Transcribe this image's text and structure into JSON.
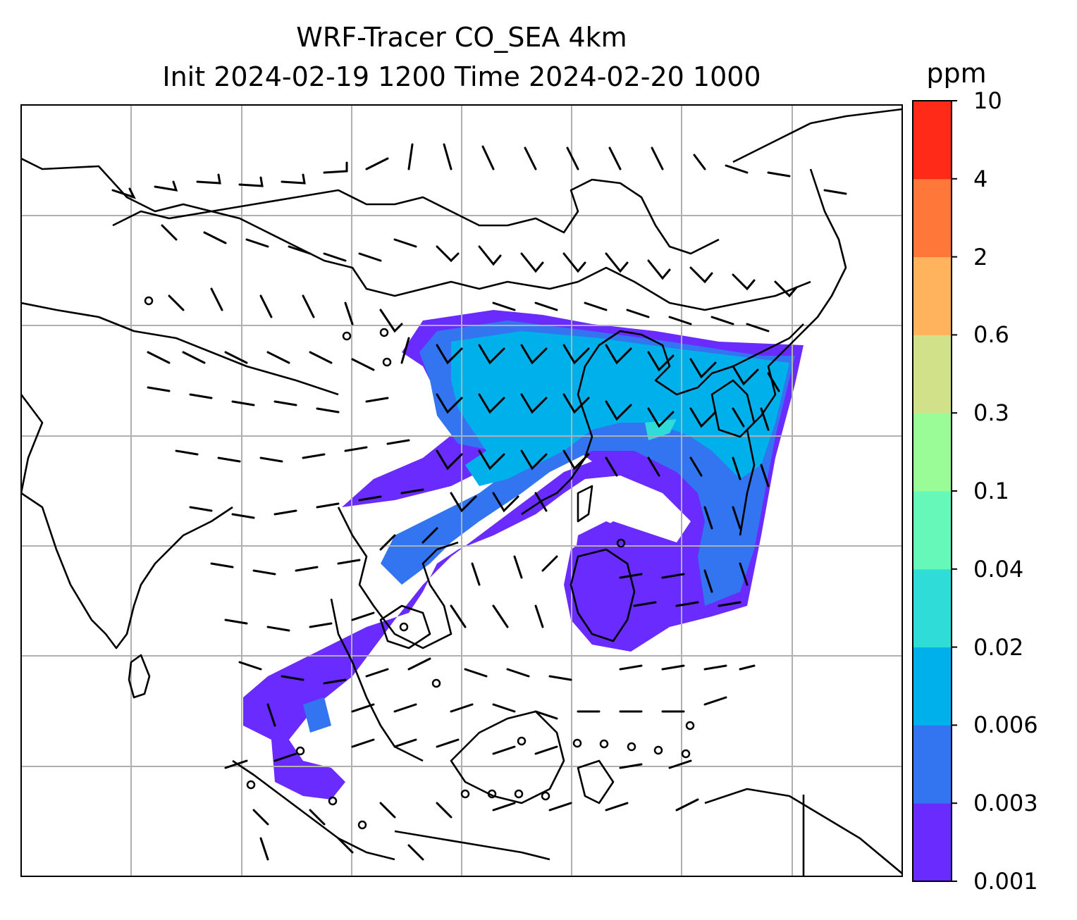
{
  "title": {
    "line1": "WRF-Tracer CO_SEA 4km",
    "line2": "Init 2024-02-19 1200 Time 2024-02-20 1000"
  },
  "colorbar": {
    "unit": "ppm",
    "levels": [
      "0.001",
      "0.003",
      "0.006",
      "0.02",
      "0.04",
      "0.1",
      "0.3",
      "0.6",
      "2",
      "4",
      "10"
    ],
    "colors": [
      "#6a2bff",
      "#3375f0",
      "#00b0ea",
      "#2fdcd8",
      "#66f8b8",
      "#9afc96",
      "#d0e189",
      "#ffb35d",
      "#ff7739",
      "#ff2a17"
    ]
  },
  "map": {
    "gridline_color": "#b0b0b0",
    "coastline_color": "#000000",
    "field_name": "CO tracer concentration",
    "wind_barbs": "black"
  }
}
